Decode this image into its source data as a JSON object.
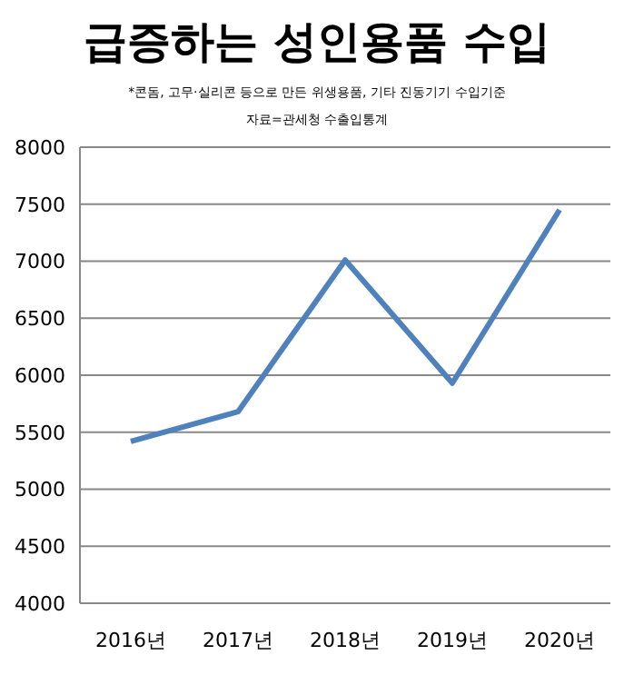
{
  "chart_data": {
    "type": "line",
    "title": "급증하는 성인용품 수입",
    "subtitle": "*콘돔, 고무·실리콘 등으로 만든 위생용품, 기타 진동기기 수입기준",
    "annotations": [
      "자료=관세청 수출입통계"
    ],
    "categories": [
      "2016년",
      "2017년",
      "2018년",
      "2019년",
      "2020년"
    ],
    "series": [
      {
        "color": "#4f81bd",
        "values": [
          5420,
          5680,
          7010,
          5930,
          7450
        ]
      }
    ],
    "ylim": [
      4000,
      8000
    ],
    "yticks": [
      4000,
      4500,
      5000,
      5500,
      6000,
      6500,
      7000,
      7500,
      8000
    ],
    "grid": "y",
    "marker": "none",
    "line_style": "solid",
    "legend": false
  }
}
